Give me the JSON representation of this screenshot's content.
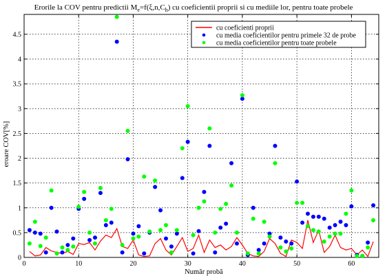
{
  "chart_data": {
    "type": "scatter",
    "title": {
      "prefix": "Erorile la COV pentru predictii M",
      "sub_e": "e",
      "mid": "=f(ξ,n,C",
      "sub_h": "h",
      "suffix": ") cu coeficientii proprii si cu mediile lor, pentru toate probele"
    },
    "xlabel": "Număr probă",
    "ylabel": "eroare COV[%]",
    "xlim": [
      0,
      65
    ],
    "ylim": [
      0,
      4.9
    ],
    "xticks": [
      0,
      10,
      20,
      30,
      40,
      50,
      60
    ],
    "yticks": [
      0,
      0.5,
      1,
      1.5,
      2,
      2.5,
      3,
      3.5,
      4,
      4.5
    ],
    "grid": true,
    "legend_position": "top-right",
    "colors": {
      "red": "#ff0000",
      "blue": "#0000ff",
      "green": "#00ff00"
    },
    "series": [
      {
        "name": "cu coeficienti proprii",
        "style": "line",
        "color": "#ff0000",
        "x": [
          1,
          2,
          3,
          4,
          5,
          6,
          7,
          8,
          9,
          10,
          11,
          12,
          13,
          14,
          15,
          16,
          17,
          18,
          19,
          20,
          21,
          22,
          23,
          24,
          25,
          26,
          27,
          28,
          29,
          30,
          31,
          32,
          33,
          34,
          35,
          36,
          37,
          38,
          39,
          40,
          41,
          42,
          43,
          44,
          45,
          46,
          47,
          48,
          49,
          50,
          51,
          52,
          53,
          54,
          55,
          56,
          57,
          58,
          59,
          60,
          61,
          62,
          63,
          64
        ],
        "values": [
          0.12,
          0.03,
          0.05,
          0.2,
          0.13,
          0.1,
          0.08,
          0.12,
          0.06,
          0.28,
          0.26,
          0.3,
          0.15,
          0.33,
          0.45,
          0.4,
          0.58,
          0.22,
          0.18,
          0.35,
          0.05,
          0.02,
          0.03,
          0.28,
          0.38,
          0.15,
          0.05,
          0.22,
          0.4,
          0.12,
          0.18,
          0.45,
          0.1,
          0.35,
          0.2,
          0.25,
          0.15,
          0.22,
          0.4,
          0.25,
          0.08,
          0.03,
          0.02,
          0.12,
          0.38,
          0.28,
          0.08,
          0.02,
          0.35,
          0.3,
          0.18,
          0.75,
          0.3,
          0.55,
          0.1,
          0.22,
          0.45,
          0.2,
          0.15,
          0.18,
          0.05,
          0.15,
          0.02,
          0.32
        ]
      },
      {
        "name": "cu media coeficientilor pentru primele 32 de probe",
        "style": "dots",
        "color": "#0000ff",
        "x": [
          1,
          2,
          3,
          4,
          5,
          6,
          7,
          8,
          9,
          10,
          11,
          12,
          13,
          14,
          15,
          16,
          17,
          18,
          19,
          20,
          21,
          22,
          23,
          24,
          25,
          26,
          27,
          28,
          29,
          30,
          31,
          32,
          33,
          34,
          35,
          36,
          37,
          38,
          39,
          40,
          41,
          42,
          43,
          44,
          45,
          46,
          47,
          48,
          49,
          50,
          51,
          52,
          53,
          54,
          55,
          56,
          57,
          58,
          59,
          60,
          61,
          62,
          63,
          64
        ],
        "values": [
          0.55,
          0.5,
          0.48,
          0.1,
          1.0,
          0.52,
          0.1,
          0.25,
          0.38,
          0.98,
          1.18,
          0.35,
          0.4,
          1.3,
          0.65,
          0.7,
          4.35,
          0.1,
          1.98,
          0.48,
          0.63,
          0.08,
          0.5,
          1.42,
          0.95,
          0.38,
          0.22,
          0.48,
          1.6,
          2.33,
          0.08,
          0.53,
          1.32,
          2.25,
          0.1,
          0.6,
          0.68,
          1.9,
          0.28,
          3.2,
          0.05,
          1.0,
          0.15,
          0.28,
          0.48,
          2.25,
          0.4,
          0.32,
          0.28,
          1.53,
          0.7,
          0.88,
          0.82,
          0.82,
          0.78,
          0.6,
          0.65,
          0.72,
          0.65,
          1.03,
          0.05,
          0.03,
          0.3,
          1.05
        ]
      },
      {
        "name": "cu media coeficientilor pentru toate probele",
        "style": "dots",
        "color": "#00ff00",
        "x": [
          1,
          2,
          3,
          4,
          5,
          6,
          7,
          8,
          9,
          10,
          11,
          12,
          13,
          14,
          15,
          16,
          17,
          18,
          19,
          20,
          21,
          22,
          23,
          24,
          25,
          26,
          27,
          28,
          29,
          30,
          31,
          32,
          33,
          34,
          35,
          36,
          37,
          38,
          39,
          40,
          41,
          42,
          43,
          44,
          45,
          46,
          47,
          48,
          49,
          50,
          51,
          52,
          53,
          54,
          55,
          56,
          57,
          58,
          59,
          60,
          61,
          62,
          63,
          64
        ],
        "values": [
          0.28,
          0.72,
          0.23,
          0.4,
          1.35,
          0.08,
          0.2,
          0.15,
          0.22,
          1.02,
          1.32,
          0.5,
          0.28,
          1.4,
          0.75,
          0.98,
          4.85,
          0.25,
          2.55,
          0.38,
          0.42,
          1.63,
          0.52,
          1.55,
          0.55,
          0.65,
          0.1,
          0.55,
          2.2,
          3.05,
          0.45,
          1.0,
          1.13,
          2.6,
          0.5,
          0.98,
          1.08,
          1.45,
          0.5,
          3.27,
          0.08,
          0.78,
          0.08,
          0.72,
          0.42,
          1.9,
          0.2,
          0.12,
          0.18,
          1.1,
          1.1,
          0.63,
          0.55,
          0.52,
          0.32,
          0.42,
          0.48,
          0.48,
          0.88,
          1.35,
          0.03,
          0.03,
          0.2,
          0.75
        ]
      }
    ]
  }
}
